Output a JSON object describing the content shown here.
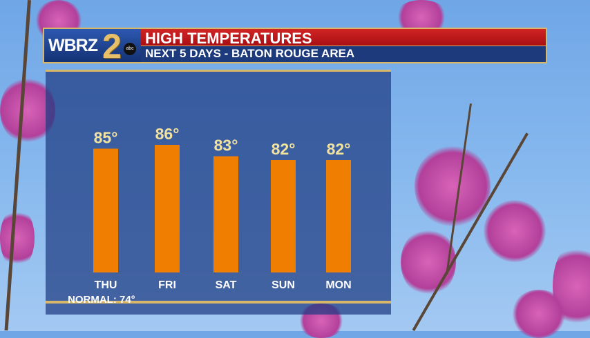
{
  "header": {
    "logo_text": "WBRZ 2 abc",
    "title": "HIGH TEMPERATURES",
    "subtitle": "NEXT 5 DAYS - BATON ROUGE AREA"
  },
  "colors": {
    "bar": "#f07e00",
    "value_label": "#f2e2a0",
    "title_bar": "#c41a1e",
    "subtitle_bar": "#1d3a7c",
    "accent": "#d8b868"
  },
  "chart_data": {
    "type": "bar",
    "title": "HIGH TEMPERATURES",
    "categories": [
      "THU",
      "FRI",
      "SAT",
      "SUN",
      "MON"
    ],
    "values": [
      85,
      86,
      83,
      82,
      82
    ],
    "value_labels": [
      "85°",
      "86°",
      "83°",
      "82°",
      "82°"
    ],
    "unit": "°F",
    "annotation": "NORMAL: 74°",
    "grid": false
  }
}
